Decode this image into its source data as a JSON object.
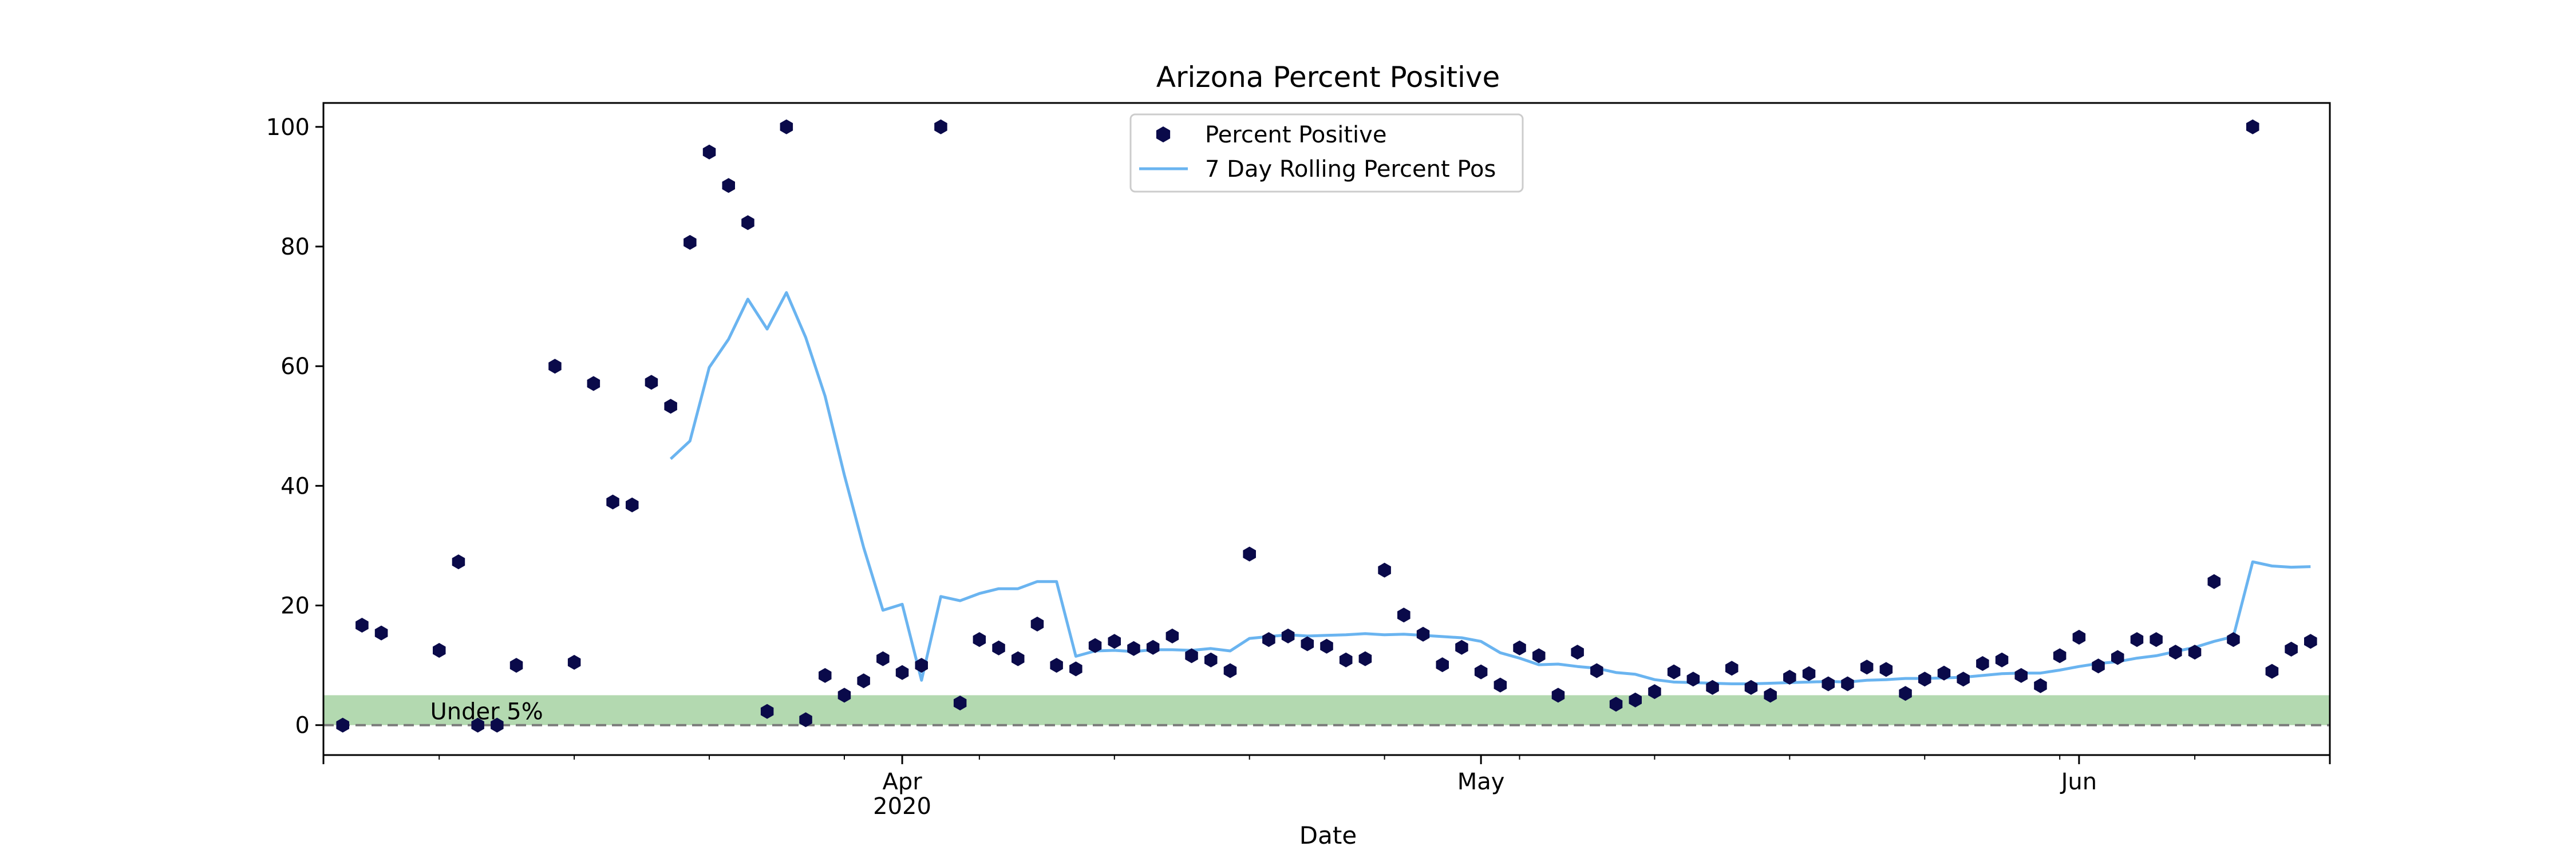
{
  "chart_data": {
    "type": "scatter",
    "title": "Arizona Percent Positive",
    "xlabel": "Date",
    "ylabel": "",
    "xlim": [
      "2020-03-02",
      "2020-06-14"
    ],
    "ylim": [
      -5,
      104
    ],
    "yticks": [
      0,
      20,
      40,
      60,
      80,
      100
    ],
    "xticks_major": [
      {
        "date": "2020-04-01",
        "label": "Apr",
        "sublabel": "2020"
      },
      {
        "date": "2020-05-01",
        "label": "May",
        "sublabel": ""
      },
      {
        "date": "2020-06-01",
        "label": "Jun",
        "sublabel": ""
      }
    ],
    "legend_position": "top-center",
    "grid": false,
    "colors": {
      "points": "#0a0a4a",
      "rolling": "#6ab4f0",
      "band": "#b3d9b0",
      "threshold": "#7a7a7a"
    },
    "band": {
      "from": 0,
      "to": 5,
      "label": "Under 5%"
    },
    "threshold": 0,
    "series": [
      {
        "name": "Percent Positive",
        "kind": "scatter",
        "points": [
          [
            "2020-03-03",
            0
          ],
          [
            "2020-03-04",
            16.7
          ],
          [
            "2020-03-05",
            15.4
          ],
          [
            "2020-03-08",
            12.5
          ],
          [
            "2020-03-09",
            27.3
          ],
          [
            "2020-03-10",
            0
          ],
          [
            "2020-03-11",
            0
          ],
          [
            "2020-03-12",
            10
          ],
          [
            "2020-03-14",
            60
          ],
          [
            "2020-03-15",
            10.5
          ],
          [
            "2020-03-16",
            57.1
          ],
          [
            "2020-03-17",
            37.3
          ],
          [
            "2020-03-18",
            36.8
          ],
          [
            "2020-03-19",
            57.3
          ],
          [
            "2020-03-20",
            53.3
          ],
          [
            "2020-03-21",
            80.7
          ],
          [
            "2020-03-22",
            95.8
          ],
          [
            "2020-03-23",
            90.2
          ],
          [
            "2020-03-24",
            84
          ],
          [
            "2020-03-25",
            2.3
          ],
          [
            "2020-03-26",
            100
          ],
          [
            "2020-03-27",
            0.9
          ],
          [
            "2020-03-28",
            8.3
          ],
          [
            "2020-03-29",
            5
          ],
          [
            "2020-03-30",
            7.4
          ],
          [
            "2020-03-31",
            11.1
          ],
          [
            "2020-04-01",
            8.8
          ],
          [
            "2020-04-02",
            10
          ],
          [
            "2020-04-03",
            100
          ],
          [
            "2020-04-04",
            3.7
          ],
          [
            "2020-04-05",
            14.3
          ],
          [
            "2020-04-06",
            12.9
          ],
          [
            "2020-04-07",
            11.1
          ],
          [
            "2020-04-08",
            16.9
          ],
          [
            "2020-04-09",
            10
          ],
          [
            "2020-04-10",
            9.4
          ],
          [
            "2020-04-11",
            13.3
          ],
          [
            "2020-04-12",
            14
          ],
          [
            "2020-04-13",
            12.8
          ],
          [
            "2020-04-14",
            13
          ],
          [
            "2020-04-15",
            14.9
          ],
          [
            "2020-04-16",
            11.6
          ],
          [
            "2020-04-17",
            10.9
          ],
          [
            "2020-04-18",
            9.1
          ],
          [
            "2020-04-19",
            28.6
          ],
          [
            "2020-04-20",
            14.3
          ],
          [
            "2020-04-21",
            14.9
          ],
          [
            "2020-04-22",
            13.6
          ],
          [
            "2020-04-23",
            13.2
          ],
          [
            "2020-04-24",
            10.9
          ],
          [
            "2020-04-25",
            11.1
          ],
          [
            "2020-04-26",
            25.9
          ],
          [
            "2020-04-27",
            18.4
          ],
          [
            "2020-04-28",
            15.2
          ],
          [
            "2020-04-29",
            10.1
          ],
          [
            "2020-04-30",
            13
          ],
          [
            "2020-05-01",
            8.9
          ],
          [
            "2020-05-02",
            6.7
          ],
          [
            "2020-05-03",
            12.9
          ],
          [
            "2020-05-04",
            11.6
          ],
          [
            "2020-05-05",
            5
          ],
          [
            "2020-05-06",
            12.2
          ],
          [
            "2020-05-07",
            9.1
          ],
          [
            "2020-05-08",
            3.5
          ],
          [
            "2020-05-09",
            4.2
          ],
          [
            "2020-05-10",
            5.6
          ],
          [
            "2020-05-11",
            8.9
          ],
          [
            "2020-05-12",
            7.7
          ],
          [
            "2020-05-13",
            6.3
          ],
          [
            "2020-05-14",
            9.5
          ],
          [
            "2020-05-15",
            6.3
          ],
          [
            "2020-05-16",
            5
          ],
          [
            "2020-05-17",
            8
          ],
          [
            "2020-05-18",
            8.6
          ],
          [
            "2020-05-19",
            6.9
          ],
          [
            "2020-05-20",
            6.9
          ],
          [
            "2020-05-21",
            9.7
          ],
          [
            "2020-05-22",
            9.3
          ],
          [
            "2020-05-23",
            5.3
          ],
          [
            "2020-05-24",
            7.7
          ],
          [
            "2020-05-25",
            8.7
          ],
          [
            "2020-05-26",
            7.7
          ],
          [
            "2020-05-27",
            10.3
          ],
          [
            "2020-05-28",
            10.9
          ],
          [
            "2020-05-29",
            8.3
          ],
          [
            "2020-05-30",
            6.6
          ],
          [
            "2020-05-31",
            11.6
          ],
          [
            "2020-06-01",
            14.7
          ],
          [
            "2020-06-02",
            9.9
          ],
          [
            "2020-06-03",
            11.3
          ],
          [
            "2020-06-04",
            14.3
          ],
          [
            "2020-06-05",
            14.3
          ],
          [
            "2020-06-06",
            12.2
          ],
          [
            "2020-06-07",
            12.2
          ],
          [
            "2020-06-08",
            24
          ],
          [
            "2020-06-09",
            14.3
          ],
          [
            "2020-06-10",
            100
          ],
          [
            "2020-06-11",
            9
          ],
          [
            "2020-06-12",
            12.7
          ],
          [
            "2020-06-13",
            14
          ]
        ]
      },
      {
        "name": "7 Day Rolling Percent Pos",
        "kind": "line",
        "points": [
          [
            "2020-03-20",
            44.5
          ],
          [
            "2020-03-21",
            47.5
          ],
          [
            "2020-03-22",
            59.8
          ],
          [
            "2020-03-23",
            64.5
          ],
          [
            "2020-03-24",
            71.2
          ],
          [
            "2020-03-25",
            66.2
          ],
          [
            "2020-03-26",
            72.3
          ],
          [
            "2020-03-27",
            64.8
          ],
          [
            "2020-03-28",
            55
          ],
          [
            "2020-03-29",
            41.8
          ],
          [
            "2020-03-30",
            29.7
          ],
          [
            "2020-03-31",
            19.2
          ],
          [
            "2020-04-01",
            20.2
          ],
          [
            "2020-04-02",
            7.5
          ],
          [
            "2020-04-03",
            21.5
          ],
          [
            "2020-04-04",
            20.8
          ],
          [
            "2020-04-05",
            22
          ],
          [
            "2020-04-06",
            22.8
          ],
          [
            "2020-04-07",
            22.8
          ],
          [
            "2020-04-08",
            24
          ],
          [
            "2020-04-09",
            24
          ],
          [
            "2020-04-10",
            11.5
          ],
          [
            "2020-04-11",
            12.4
          ],
          [
            "2020-04-12",
            12.5
          ],
          [
            "2020-04-13",
            12.3
          ],
          [
            "2020-04-14",
            12.6
          ],
          [
            "2020-04-15",
            12.6
          ],
          [
            "2020-04-16",
            12.5
          ],
          [
            "2020-04-17",
            12.8
          ],
          [
            "2020-04-18",
            12.4
          ],
          [
            "2020-04-19",
            14.5
          ],
          [
            "2020-04-20",
            14.8
          ],
          [
            "2020-04-21",
            15.1
          ],
          [
            "2020-04-22",
            14.9
          ],
          [
            "2020-04-23",
            15
          ],
          [
            "2020-04-24",
            15.1
          ],
          [
            "2020-04-25",
            15.3
          ],
          [
            "2020-04-26",
            15.1
          ],
          [
            "2020-04-27",
            15.2
          ],
          [
            "2020-04-28",
            15
          ],
          [
            "2020-04-29",
            14.8
          ],
          [
            "2020-04-30",
            14.6
          ],
          [
            "2020-05-01",
            14
          ],
          [
            "2020-05-02",
            12.1
          ],
          [
            "2020-05-03",
            11.2
          ],
          [
            "2020-05-04",
            10.1
          ],
          [
            "2020-05-05",
            10.2
          ],
          [
            "2020-05-06",
            9.8
          ],
          [
            "2020-05-07",
            9.5
          ],
          [
            "2020-05-08",
            8.8
          ],
          [
            "2020-05-09",
            8.5
          ],
          [
            "2020-05-10",
            7.6
          ],
          [
            "2020-05-11",
            7.2
          ],
          [
            "2020-05-12",
            7.1
          ],
          [
            "2020-05-13",
            7
          ],
          [
            "2020-05-14",
            6.9
          ],
          [
            "2020-05-15",
            6.9
          ],
          [
            "2020-05-16",
            7
          ],
          [
            "2020-05-17",
            7.1
          ],
          [
            "2020-05-18",
            7.2
          ],
          [
            "2020-05-19",
            7.3
          ],
          [
            "2020-05-20",
            7.2
          ],
          [
            "2020-05-21",
            7.5
          ],
          [
            "2020-05-22",
            7.6
          ],
          [
            "2020-05-23",
            7.8
          ],
          [
            "2020-05-24",
            7.8
          ],
          [
            "2020-05-25",
            7.9
          ],
          [
            "2020-05-26",
            8
          ],
          [
            "2020-05-27",
            8.3
          ],
          [
            "2020-05-28",
            8.6
          ],
          [
            "2020-05-29",
            8.7
          ],
          [
            "2020-05-30",
            8.7
          ],
          [
            "2020-05-31",
            9.2
          ],
          [
            "2020-06-01",
            9.8
          ],
          [
            "2020-06-02",
            10.3
          ],
          [
            "2020-06-03",
            10.6
          ],
          [
            "2020-06-04",
            11.2
          ],
          [
            "2020-06-05",
            11.6
          ],
          [
            "2020-06-06",
            12.3
          ],
          [
            "2020-06-07",
            13
          ],
          [
            "2020-06-08",
            14
          ],
          [
            "2020-06-09",
            14.8
          ],
          [
            "2020-06-10",
            27.3
          ],
          [
            "2020-06-11",
            26.6
          ],
          [
            "2020-06-12",
            26.4
          ],
          [
            "2020-06-13",
            26.5
          ]
        ]
      }
    ]
  }
}
